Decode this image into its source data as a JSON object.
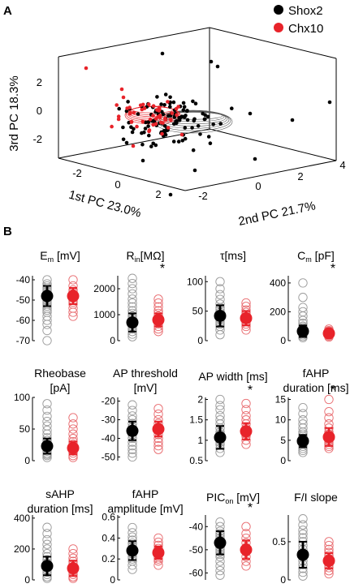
{
  "colors": {
    "shox2": "#000000",
    "chx10": "#e8232a",
    "star": "#8b2d8b",
    "shox2_open": "#9a9a9a",
    "chx10_open": "#e86a6e",
    "cube": "#000000"
  },
  "panel_a": {
    "label": "A",
    "legend": [
      {
        "name": "Shox2",
        "color": "#000000"
      },
      {
        "name": "Chx10",
        "color": "#e8232a"
      }
    ],
    "axes": {
      "x_label": "1st PC 23.0%",
      "y_label": "2nd PC 21.7%",
      "z_label": "3rd PC 18.3%",
      "x_ticks": [
        "-2",
        "0",
        "2"
      ],
      "y_ticks": [
        "-2",
        "0",
        "2",
        "4"
      ],
      "z_ticks": [
        "2",
        "0",
        "-2"
      ]
    }
  },
  "panel_b": {
    "label": "B",
    "significance_marker": "*"
  },
  "chart_data": {
    "type": "scatter",
    "series": [
      {
        "name": "Shox2",
        "color": "#000000"
      },
      {
        "name": "Chx10",
        "color": "#e8232a"
      }
    ],
    "panels": [
      {
        "title_lines": [
          "E",
          "m",
          " [mV]"
        ],
        "title_kind": "sub",
        "ylim": [
          -70,
          -38
        ],
        "ticks": [
          -40,
          -50,
          -60,
          -70
        ],
        "tick_labels": [
          "-40",
          "-50",
          "-60",
          "-70"
        ],
        "signif": false,
        "shox2": {
          "mean": -48,
          "sd": 5,
          "points": [
            -40,
            -42,
            -43,
            -44,
            -45,
            -46,
            -47,
            -48,
            -49,
            -50,
            -51,
            -52,
            -53,
            -54,
            -55,
            -56,
            -58,
            -60,
            -62,
            -65,
            -70
          ]
        },
        "chx10": {
          "mean": -48,
          "sd": 4,
          "points": [
            -40,
            -43,
            -45,
            -46,
            -47,
            -48,
            -49,
            -50,
            -51,
            -52,
            -54,
            -56,
            -58
          ]
        }
      },
      {
        "title_lines": [
          "R",
          "in",
          "[MΩ]"
        ],
        "title_kind": "sub",
        "ylim": [
          0,
          2500
        ],
        "ticks": [
          0,
          1000,
          2000
        ],
        "tick_labels": [
          "0",
          "1000",
          "2000"
        ],
        "signif": true,
        "shox2": {
          "mean": 700,
          "sd": 350,
          "points": [
            150,
            250,
            350,
            450,
            550,
            650,
            750,
            850,
            950,
            1050,
            1150,
            1300,
            1450,
            1600,
            1800,
            2000,
            2200,
            2400
          ]
        },
        "chx10": {
          "mean": 800,
          "sd": 250,
          "points": [
            350,
            450,
            550,
            650,
            750,
            850,
            950,
            1050,
            1150,
            1300,
            1450,
            1600
          ]
        }
      },
      {
        "title_lines": [
          "τ[ms]"
        ],
        "title_kind": "plain",
        "ylim": [
          0,
          110
        ],
        "ticks": [
          0,
          50,
          100
        ],
        "tick_labels": [
          "0",
          "50",
          "100"
        ],
        "signif": false,
        "shox2": {
          "mean": 42,
          "sd": 18,
          "points": [
            10,
            18,
            24,
            28,
            32,
            36,
            40,
            44,
            48,
            52,
            56,
            62,
            70,
            78,
            88,
            100
          ]
        },
        "chx10": {
          "mean": 38,
          "sd": 12,
          "points": [
            18,
            24,
            28,
            32,
            36,
            40,
            44,
            48,
            52,
            58,
            64
          ]
        }
      },
      {
        "title_lines": [
          "C",
          "m",
          " [pF]"
        ],
        "title_kind": "sub",
        "ylim": [
          0,
          450
        ],
        "ticks": [
          0,
          200,
          400
        ],
        "tick_labels": [
          "0",
          "200",
          "400"
        ],
        "signif": true,
        "shox2": {
          "mean": 65,
          "sd": 40,
          "points": [
            20,
            30,
            40,
            50,
            60,
            70,
            80,
            90,
            100,
            120,
            140,
            170,
            200,
            230,
            300,
            400
          ]
        },
        "chx10": {
          "mean": 50,
          "sd": 15,
          "points": [
            25,
            32,
            40,
            46,
            52,
            58,
            64,
            70,
            80
          ]
        }
      },
      {
        "title_lines": [
          "Rheobase",
          "[pA]"
        ],
        "title_kind": "twoline",
        "ylim": [
          0,
          100
        ],
        "ticks": [
          0,
          50,
          100
        ],
        "tick_labels": [
          "0",
          "50",
          "100"
        ],
        "signif": false,
        "shox2": {
          "mean": 23,
          "sd": 12,
          "points": [
            5,
            8,
            10,
            12,
            15,
            18,
            20,
            22,
            25,
            28,
            32,
            36,
            42,
            48,
            55,
            62,
            70,
            80,
            90
          ]
        },
        "chx10": {
          "mean": 20,
          "sd": 10,
          "points": [
            5,
            8,
            12,
            15,
            18,
            22,
            26,
            30,
            35,
            42,
            50,
            58,
            68
          ]
        }
      },
      {
        "title_lines": [
          "AP threshold",
          "[mV]"
        ],
        "title_kind": "twoline",
        "ylim": [
          -52,
          -18
        ],
        "ticks": [
          -20,
          -30,
          -40,
          -50
        ],
        "tick_labels": [
          "-20",
          "-30",
          "-40",
          "-50"
        ],
        "signif": false,
        "shox2": {
          "mean": -36,
          "sd": 5,
          "points": [
            -22,
            -25,
            -28,
            -30,
            -32,
            -34,
            -36,
            -38,
            -40,
            -42,
            -44,
            -46,
            -48,
            -50
          ]
        },
        "chx10": {
          "mean": -35,
          "sd": 4,
          "points": [
            -24,
            -27,
            -30,
            -32,
            -34,
            -36,
            -38,
            -40,
            -42,
            -44,
            -46
          ]
        }
      },
      {
        "title_lines": [
          "AP width [ms]"
        ],
        "title_kind": "plain",
        "ylim": [
          0.5,
          2.05
        ],
        "ticks": [
          0.5,
          1,
          1.5,
          2
        ],
        "tick_labels": [
          "0.5",
          "1",
          "1.5",
          "2"
        ],
        "signif": true,
        "shox2": {
          "mean": 1.07,
          "sd": 0.28,
          "points": [
            0.7,
            0.8,
            0.9,
            0.95,
            1.0,
            1.05,
            1.1,
            1.15,
            1.2,
            1.3,
            1.4,
            1.5,
            1.6,
            1.75,
            1.85,
            2.0
          ]
        },
        "chx10": {
          "mean": 1.22,
          "sd": 0.2,
          "points": [
            0.9,
            1.0,
            1.1,
            1.15,
            1.2,
            1.25,
            1.3,
            1.4,
            1.5,
            1.6,
            1.75,
            1.9
          ]
        }
      },
      {
        "title_lines": [
          "fAHP",
          "duration [ms]"
        ],
        "title_kind": "twoline",
        "ylim": [
          0,
          15.5
        ],
        "ticks": [
          0,
          5,
          10,
          15
        ],
        "tick_labels": [
          "0",
          "5",
          "10",
          "15"
        ],
        "signif": true,
        "shox2": {
          "mean": 4.8,
          "sd": 1.5,
          "points": [
            2,
            2.5,
            3,
            3.5,
            4,
            4.5,
            5,
            5.5,
            6,
            6.5,
            7,
            8,
            9,
            10,
            11.5,
            13
          ]
        },
        "chx10": {
          "mean": 5.8,
          "sd": 2.2,
          "points": [
            3,
            3.5,
            4,
            4.5,
            5,
            5.5,
            6,
            6.5,
            7,
            8,
            9,
            10.5,
            12,
            15
          ]
        }
      },
      {
        "title_lines": [
          "sAHP",
          "duration [ms]"
        ],
        "title_kind": "twoline",
        "ylim": [
          0,
          420
        ],
        "ticks": [
          0,
          200,
          400
        ],
        "tick_labels": [
          "0",
          "200",
          "400"
        ],
        "signif": false,
        "shox2": {
          "mean": 90,
          "sd": 60,
          "points": [
            10,
            20,
            35,
            50,
            65,
            80,
            95,
            110,
            130,
            150,
            170,
            200,
            230,
            260,
            300,
            340
          ]
        },
        "chx10": {
          "mean": 75,
          "sd": 50,
          "points": [
            10,
            20,
            35,
            50,
            65,
            80,
            100,
            120,
            140,
            170,
            200
          ]
        }
      },
      {
        "title_lines": [
          "fAHP",
          "amplitude [mV]"
        ],
        "title_kind": "twoline",
        "ylim": [
          0,
          0.62
        ],
        "ticks": [
          0,
          0.2,
          0.4,
          0.6
        ],
        "tick_labels": [
          "0",
          "0.2",
          "0.4",
          "0.6"
        ],
        "signif": false,
        "shox2": {
          "mean": 0.28,
          "sd": 0.09,
          "points": [
            0.1,
            0.14,
            0.18,
            0.2,
            0.22,
            0.25,
            0.28,
            0.3,
            0.32,
            0.35,
            0.38,
            0.41,
            0.45,
            0.5
          ]
        },
        "chx10": {
          "mean": 0.26,
          "sd": 0.06,
          "points": [
            0.14,
            0.18,
            0.2,
            0.22,
            0.25,
            0.28,
            0.3,
            0.33,
            0.36,
            0.4
          ]
        }
      },
      {
        "title_lines": [
          "PIC",
          "on",
          " [mV]"
        ],
        "title_kind": "sub",
        "ylim": [
          -63,
          -35
        ],
        "ticks": [
          -40,
          -50,
          -60
        ],
        "tick_labels": [
          "-40",
          "-50",
          "-60"
        ],
        "signif": true,
        "shox2": {
          "mean": -47,
          "sd": 5,
          "points": [
            -38,
            -40,
            -42,
            -43,
            -44,
            -45,
            -46,
            -47,
            -48,
            -49,
            -50,
            -51,
            -52,
            -53,
            -55,
            -57,
            -59,
            -61
          ]
        },
        "chx10": {
          "mean": -50,
          "sd": 4,
          "points": [
            -40,
            -43,
            -45,
            -47,
            -49,
            -51,
            -53,
            -55,
            -57
          ]
        }
      },
      {
        "title_lines": [
          "F/I slope"
        ],
        "title_kind": "plain",
        "ylim": [
          0,
          0.85
        ],
        "ticks": [
          0,
          0.5
        ],
        "tick_labels": [
          "0",
          "0.5"
        ],
        "signif": false,
        "shox2": {
          "mean": 0.33,
          "sd": 0.17,
          "points": [
            0.05,
            0.1,
            0.15,
            0.2,
            0.25,
            0.3,
            0.35,
            0.4,
            0.45,
            0.5,
            0.55,
            0.6,
            0.65,
            0.72,
            0.8
          ]
        },
        "chx10": {
          "mean": 0.25,
          "sd": 0.1,
          "points": [
            0.08,
            0.12,
            0.16,
            0.2,
            0.24,
            0.28,
            0.32,
            0.36,
            0.4,
            0.45,
            0.5
          ]
        }
      }
    ]
  }
}
